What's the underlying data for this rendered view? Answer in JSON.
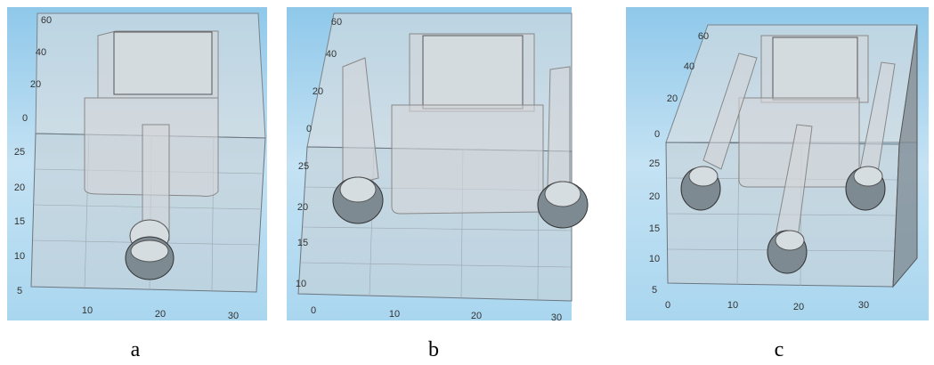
{
  "panels": [
    {
      "label": "a",
      "vertical_ticks": [
        "60",
        "40",
        "20",
        "0",
        "25",
        "20",
        "15",
        "10",
        "5"
      ],
      "bottom_ticks": [
        "10",
        "20",
        "30"
      ]
    },
    {
      "label": "b",
      "vertical_ticks": [
        "60",
        "40",
        "20",
        "0",
        "25",
        "20",
        "15",
        "10"
      ],
      "bottom_ticks": [
        "0",
        "10",
        "20",
        "30"
      ]
    },
    {
      "label": "c",
      "vertical_ticks": [
        "60",
        "40",
        "20",
        "0",
        "25",
        "20",
        "15",
        "10",
        "5"
      ],
      "bottom_ticks": [
        "0",
        "10",
        "20",
        "30"
      ]
    }
  ]
}
